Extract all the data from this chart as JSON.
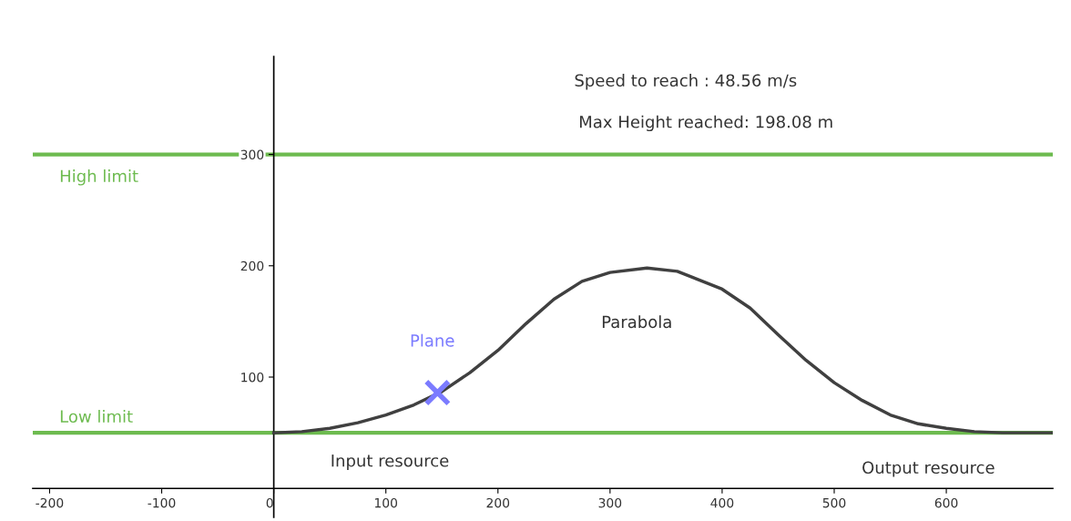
{
  "chart_data": {
    "type": "line",
    "annotations": [
      "Speed to reach : 48.56 m/s",
      "Max Height reached: 198.08 m",
      "Input resource",
      "Output resource"
    ],
    "series": [
      {
        "name": "Parabola",
        "color": "#404040",
        "x": [
          0,
          25,
          50,
          75,
          100,
          125,
          150,
          175,
          200,
          225,
          250,
          275,
          300,
          333,
          360,
          400,
          425,
          450,
          475,
          500,
          525,
          550,
          575,
          600,
          625,
          650,
          670,
          695
        ],
        "values": [
          50,
          51,
          54,
          59,
          66,
          75,
          87,
          104,
          124,
          148,
          170,
          186,
          194,
          198,
          195,
          179,
          162,
          138,
          115,
          95,
          79,
          66,
          58,
          54,
          51,
          50,
          50,
          50
        ]
      },
      {
        "name": "Plane",
        "type": "scatter",
        "color": "#7b7bff",
        "marker": "cross",
        "x": [
          146
        ],
        "values": [
          86
        ]
      }
    ],
    "ref_lines": [
      {
        "axis": "y",
        "value": 300,
        "label": "High limit",
        "color": "#6dbb4f"
      },
      {
        "axis": "y",
        "value": 50,
        "label": "Low limit",
        "color": "#6dbb4f"
      }
    ],
    "xlim": [
      -215,
      695
    ],
    "ylim": [
      -26,
      388
    ],
    "xticks": [
      -200,
      -100,
      0,
      100,
      200,
      300,
      400,
      500,
      600
    ],
    "yticks": [
      100,
      200,
      300
    ],
    "grid": false,
    "legend": false
  }
}
